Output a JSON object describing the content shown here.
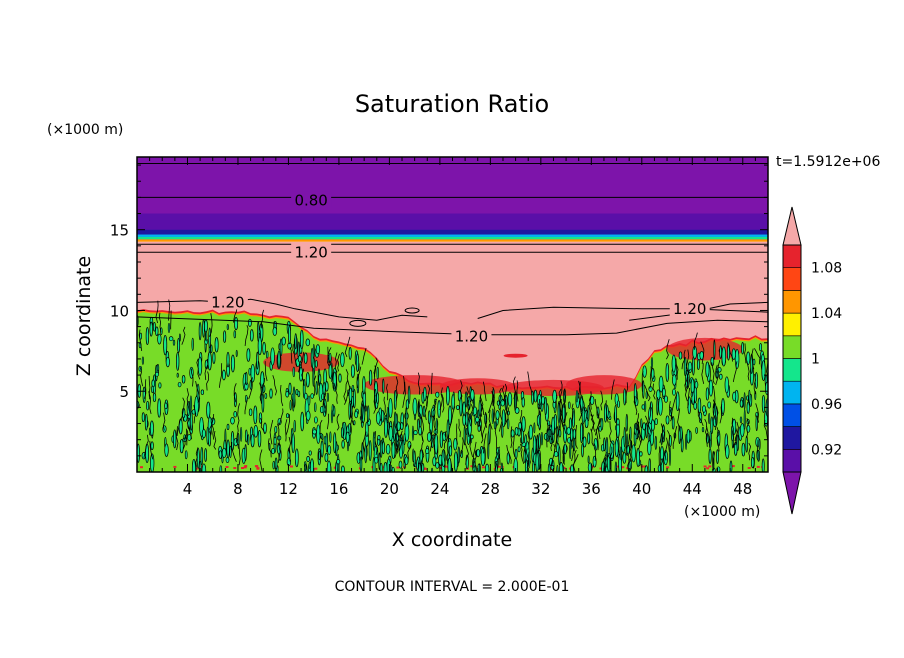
{
  "chart_data": {
    "type": "heatmap",
    "title": "Saturation Ratio",
    "xlabel": "X coordinate",
    "ylabel": "Z coordinate",
    "x_units": "(×1000 m)",
    "y_units": "(×1000 m)",
    "xlim": [
      0,
      50
    ],
    "ylim": [
      0,
      19.5
    ],
    "x_ticks": [
      4,
      8,
      12,
      16,
      20,
      24,
      28,
      32,
      36,
      40,
      44,
      48
    ],
    "y_ticks": [
      5,
      10,
      15
    ],
    "time_label": "t=1.5912e+06",
    "footer": "CONTOUR INTERVAL = 2.000E-01",
    "colorbar": {
      "tick_labels": [
        "0.92",
        "0.96",
        "1",
        "1.04",
        "1.08"
      ],
      "tick_values": [
        0.92,
        0.96,
        1.0,
        1.04,
        1.08
      ],
      "levels": [
        {
          "lo": 0.9,
          "hi": 0.92,
          "color": "#5a0fa8"
        },
        {
          "lo": 0.92,
          "hi": 0.94,
          "color": "#1f17a0"
        },
        {
          "lo": 0.94,
          "hi": 0.96,
          "color": "#0050e6"
        },
        {
          "lo": 0.96,
          "hi": 0.98,
          "color": "#00b4f0"
        },
        {
          "lo": 0.98,
          "hi": 1.0,
          "color": "#14e68c"
        },
        {
          "lo": 1.0,
          "hi": 1.02,
          "color": "#78dc28"
        },
        {
          "lo": 1.02,
          "hi": 1.04,
          "color": "#fff000"
        },
        {
          "lo": 1.04,
          "hi": 1.06,
          "color": "#ff9600"
        },
        {
          "lo": 1.06,
          "hi": 1.08,
          "color": "#ff4614"
        },
        {
          "lo": 1.08,
          "hi": 1.1,
          "color": "#e6232d"
        }
      ],
      "under_color": "#7d14aa",
      "over_color": "#f5a8a8"
    },
    "colors": {
      "upper_purple": "#7d14aa",
      "dark_band": "#5a0fa8",
      "pink_region": "#f5a8a8",
      "green_region": "#78dc28",
      "teal_region": "#14e68c",
      "red_edge": "#e6232d",
      "orange_edge": "#ff9600"
    },
    "contour_labels": [
      {
        "text": "0.80",
        "x": 13.8,
        "z": 16.8
      },
      {
        "text": "1.20",
        "x": 13.8,
        "z": 13.6
      },
      {
        "text": "1.20",
        "x": 7.2,
        "z": 10.5
      },
      {
        "text": "1.20",
        "x": 43.8,
        "z": 10.1
      },
      {
        "text": "1.20",
        "x": 26.5,
        "z": 8.4
      }
    ]
  }
}
